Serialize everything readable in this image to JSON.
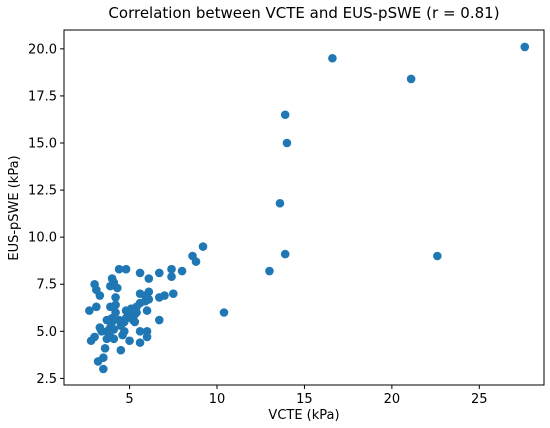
{
  "chart_data": {
    "type": "scatter",
    "title": "Correlation between VCTE and EUS-pSWE (r = 0.81)",
    "xlabel": "VCTE (kPa)",
    "ylabel": "EUS-pSWE (kPa)",
    "xlim": [
      1.25,
      28.7
    ],
    "ylim": [
      2.15,
      21.0
    ],
    "xticks": [
      {
        "value": 5,
        "label": "5"
      },
      {
        "value": 10,
        "label": "10"
      },
      {
        "value": 15,
        "label": "15"
      },
      {
        "value": 20,
        "label": "20"
      },
      {
        "value": 25,
        "label": "25"
      }
    ],
    "yticks": [
      {
        "value": 2.5,
        "label": "2.5"
      },
      {
        "value": 5.0,
        "label": "5.0"
      },
      {
        "value": 7.5,
        "label": "7.5"
      },
      {
        "value": 10.0,
        "label": "10.0"
      },
      {
        "value": 12.5,
        "label": "12.5"
      },
      {
        "value": 15.0,
        "label": "15.0"
      },
      {
        "value": 17.5,
        "label": "17.5"
      },
      {
        "value": 20.0,
        "label": "20.0"
      }
    ],
    "grid": false,
    "legend": "none",
    "point_color": "#1f77b4",
    "points": [
      [
        27.6,
        20.1
      ],
      [
        16.6,
        19.5
      ],
      [
        21.1,
        18.4
      ],
      [
        13.9,
        16.5
      ],
      [
        14.0,
        15.0
      ],
      [
        13.6,
        11.8
      ],
      [
        22.6,
        9.0
      ],
      [
        13.9,
        9.1
      ],
      [
        13.0,
        8.2
      ],
      [
        10.4,
        6.0
      ],
      [
        9.2,
        9.5
      ],
      [
        8.6,
        9.0
      ],
      [
        8.8,
        8.7
      ],
      [
        8.0,
        8.2
      ],
      [
        7.4,
        8.3
      ],
      [
        7.4,
        7.9
      ],
      [
        7.5,
        7.0
      ],
      [
        7.0,
        6.9
      ],
      [
        6.7,
        8.1
      ],
      [
        6.7,
        6.8
      ],
      [
        6.7,
        5.6
      ],
      [
        6.1,
        7.8
      ],
      [
        6.1,
        7.1
      ],
      [
        6.1,
        6.7
      ],
      [
        6.0,
        6.1
      ],
      [
        6.0,
        5.0
      ],
      [
        6.0,
        4.7
      ],
      [
        5.9,
        6.6
      ],
      [
        5.9,
        6.9
      ],
      [
        5.6,
        8.1
      ],
      [
        5.6,
        7.0
      ],
      [
        5.6,
        6.5
      ],
      [
        5.6,
        5.0
      ],
      [
        5.6,
        4.4
      ],
      [
        5.4,
        6.3
      ],
      [
        5.4,
        6.0
      ],
      [
        5.3,
        5.9
      ],
      [
        5.3,
        5.5
      ],
      [
        5.2,
        6.1
      ],
      [
        5.2,
        5.6
      ],
      [
        5.1,
        6.2
      ],
      [
        5.0,
        5.8
      ],
      [
        5.0,
        4.5
      ],
      [
        4.9,
        6.0
      ],
      [
        4.8,
        8.3
      ],
      [
        4.8,
        6.1
      ],
      [
        4.8,
        5.7
      ],
      [
        4.7,
        5.5
      ],
      [
        4.7,
        5.0
      ],
      [
        4.6,
        4.8
      ],
      [
        4.5,
        5.3
      ],
      [
        4.5,
        4.0
      ],
      [
        4.4,
        8.3
      ],
      [
        4.4,
        5.6
      ],
      [
        4.3,
        7.3
      ],
      [
        4.2,
        6.8
      ],
      [
        4.2,
        6.4
      ],
      [
        4.2,
        6.0
      ],
      [
        4.1,
        7.6
      ],
      [
        4.1,
        5.1
      ],
      [
        4.1,
        4.6
      ],
      [
        4.0,
        7.8
      ],
      [
        4.0,
        5.7
      ],
      [
        4.0,
        5.5
      ],
      [
        3.9,
        7.4
      ],
      [
        3.9,
        6.3
      ],
      [
        3.9,
        5.2
      ],
      [
        3.9,
        4.7
      ],
      [
        3.8,
        5.6
      ],
      [
        3.7,
        5.6
      ],
      [
        3.7,
        5.0
      ],
      [
        3.7,
        4.6
      ],
      [
        3.6,
        4.1
      ],
      [
        3.5,
        3.6
      ],
      [
        3.5,
        3.0
      ],
      [
        3.4,
        5.0
      ],
      [
        3.3,
        6.9
      ],
      [
        3.3,
        5.2
      ],
      [
        3.2,
        3.4
      ],
      [
        3.1,
        7.2
      ],
      [
        3.1,
        6.3
      ],
      [
        3.0,
        7.5
      ],
      [
        3.0,
        4.7
      ],
      [
        2.8,
        4.5
      ],
      [
        2.7,
        6.1
      ]
    ]
  }
}
